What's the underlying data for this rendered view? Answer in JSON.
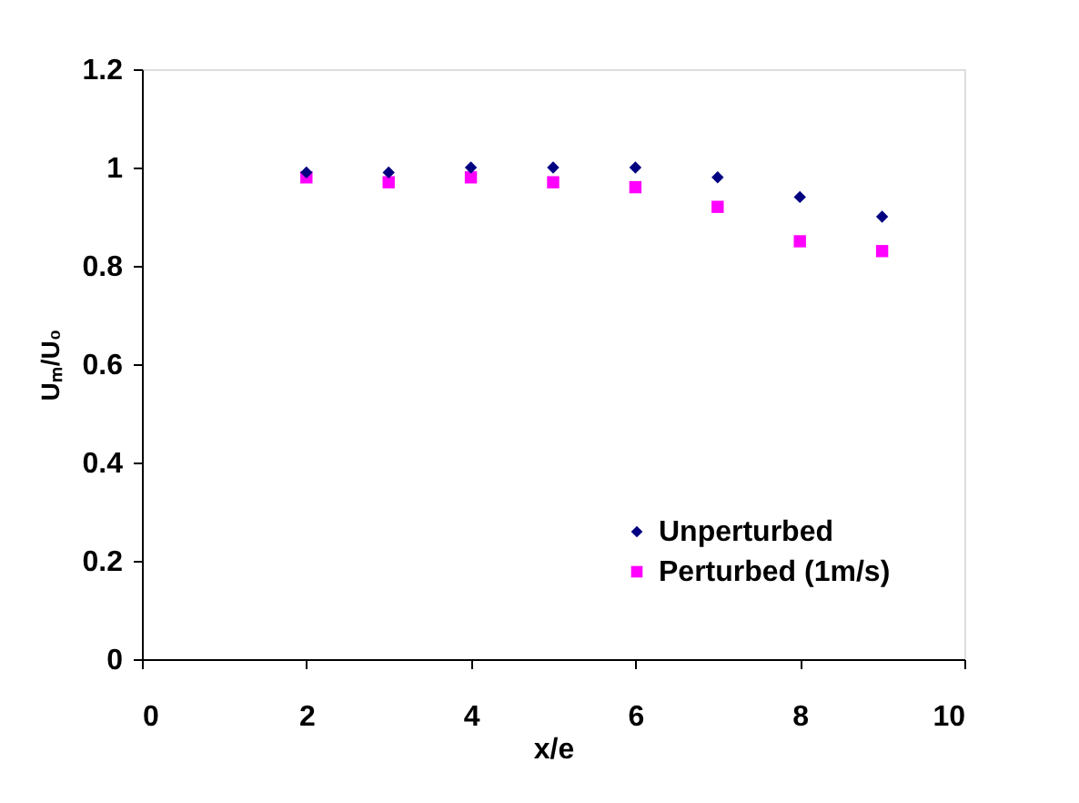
{
  "chart_data": {
    "type": "scatter",
    "xlabel": "x/e",
    "ylabel": "Uₘ/U₀",
    "x": [
      2,
      3,
      4,
      5,
      6,
      7,
      8,
      9
    ],
    "series": [
      {
        "name": "Unperturbed",
        "color": "#000080",
        "marker": "diamond",
        "values": [
          0.99,
          0.99,
          1.0,
          1.0,
          1.0,
          0.98,
          0.94,
          0.9
        ]
      },
      {
        "name": "Perturbed (1m/s)",
        "color": "#ff00ff",
        "marker": "square",
        "values": [
          0.98,
          0.97,
          0.98,
          0.97,
          0.96,
          0.92,
          0.85,
          0.83
        ]
      }
    ],
    "xlim": [
      0,
      10
    ],
    "xticks": [
      0,
      2,
      4,
      6,
      8,
      10
    ],
    "ylim": [
      0,
      1.2
    ],
    "yticks": [
      0,
      0.2,
      0.4,
      0.6,
      0.8,
      1,
      1.2
    ],
    "grid": false,
    "legend": "bottom right"
  }
}
